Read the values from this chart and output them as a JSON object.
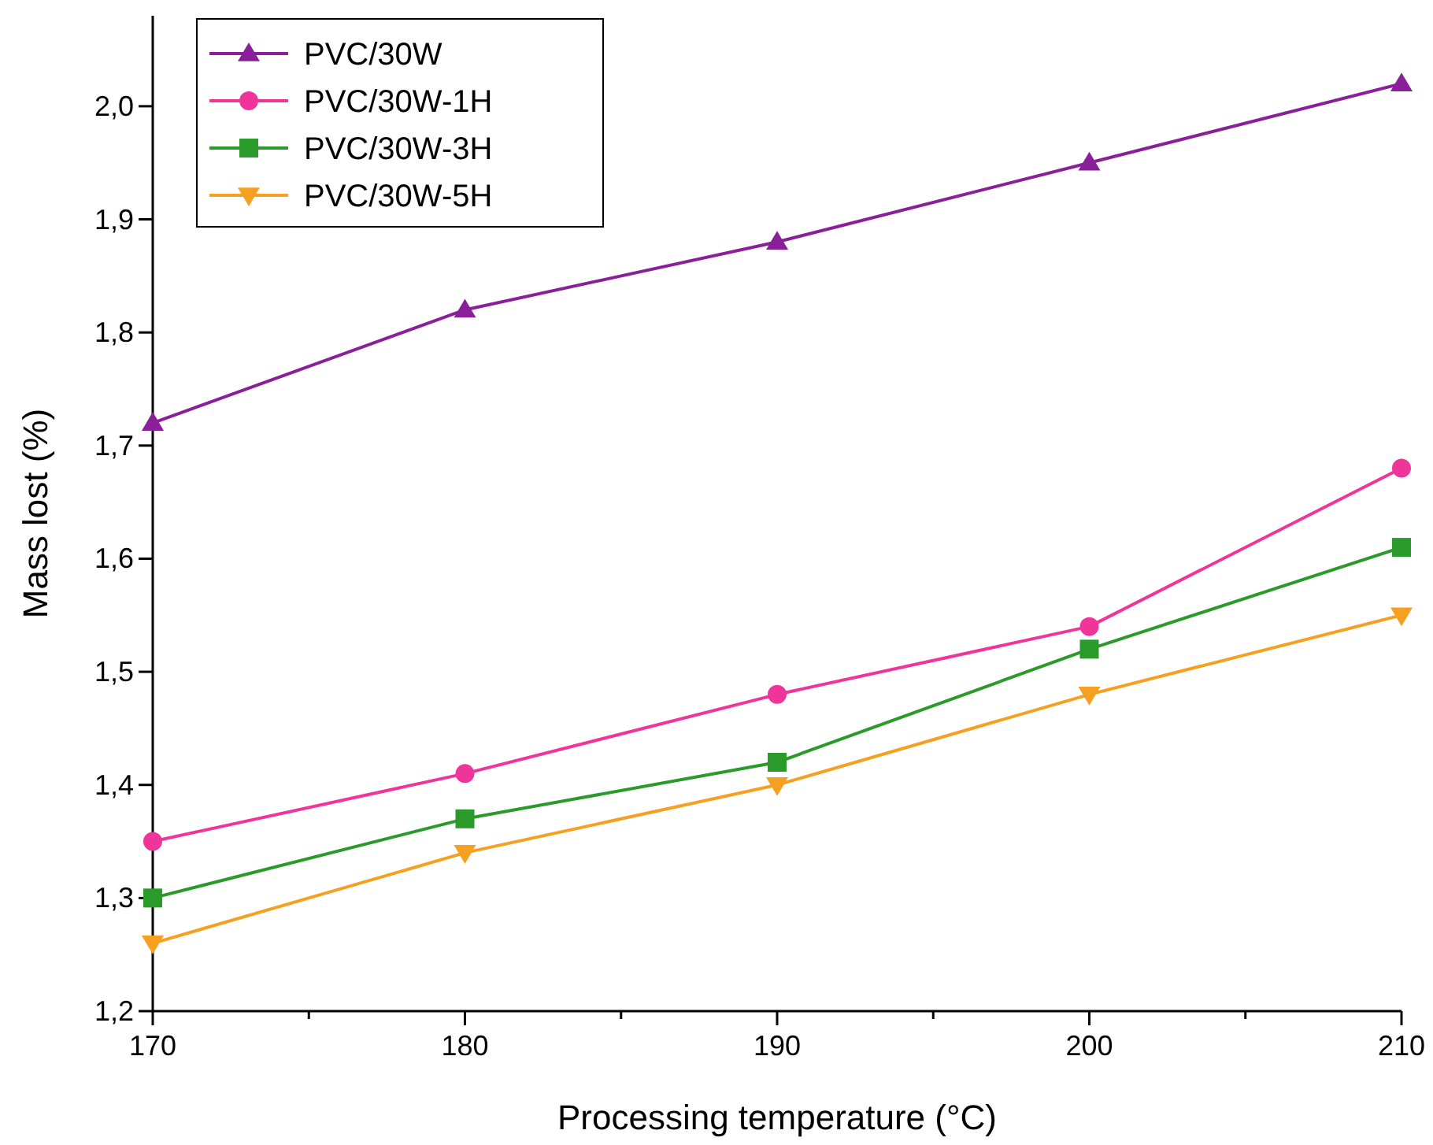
{
  "chart_data": {
    "type": "line",
    "xlabel": "Processing temperature (°C)",
    "ylabel": "Mass lost (%)",
    "x": [
      170,
      180,
      190,
      200,
      210
    ],
    "series": [
      {
        "name": "PVC/30W",
        "color": "#8a1f9a",
        "marker": "triangle",
        "values": [
          1.72,
          1.82,
          1.88,
          1.95,
          2.02
        ]
      },
      {
        "name": "PVC/30W-1H",
        "color": "#f0359a",
        "marker": "circle",
        "values": [
          1.35,
          1.41,
          1.48,
          1.54,
          1.68
        ]
      },
      {
        "name": "PVC/30W-3H",
        "color": "#2a9a2a",
        "marker": "square",
        "values": [
          1.3,
          1.37,
          1.42,
          1.52,
          1.61
        ]
      },
      {
        "name": "PVC/30W-5H",
        "color": "#f5a020",
        "marker": "triangle-down",
        "values": [
          1.26,
          1.34,
          1.4,
          1.48,
          1.55
        ]
      }
    ],
    "xlim": [
      170,
      210
    ],
    "xticks": [
      170,
      {
        "value": 175,
        "label": null
      },
      180,
      {
        "value": 185,
        "label": null
      },
      190,
      {
        "value": 195,
        "label": null
      },
      200,
      {
        "value": 205,
        "label": null
      },
      210
    ],
    "ylim": [
      1.2,
      2.08
    ],
    "yticks": [
      {
        "value": 1.2,
        "label": "1,2"
      },
      {
        "value": 1.3,
        "label": "1,3"
      },
      {
        "value": 1.4,
        "label": "1,4"
      },
      {
        "value": 1.5,
        "label": "1,5"
      },
      {
        "value": 1.6,
        "label": "1,6"
      },
      {
        "value": 1.7,
        "label": "1,7"
      },
      {
        "value": 1.8,
        "label": "1,8"
      },
      {
        "value": 1.9,
        "label": "1,9"
      },
      {
        "value": 2.0,
        "label": "2,0"
      }
    ],
    "grid": false,
    "legend": "top left",
    "line_style": "solid"
  }
}
